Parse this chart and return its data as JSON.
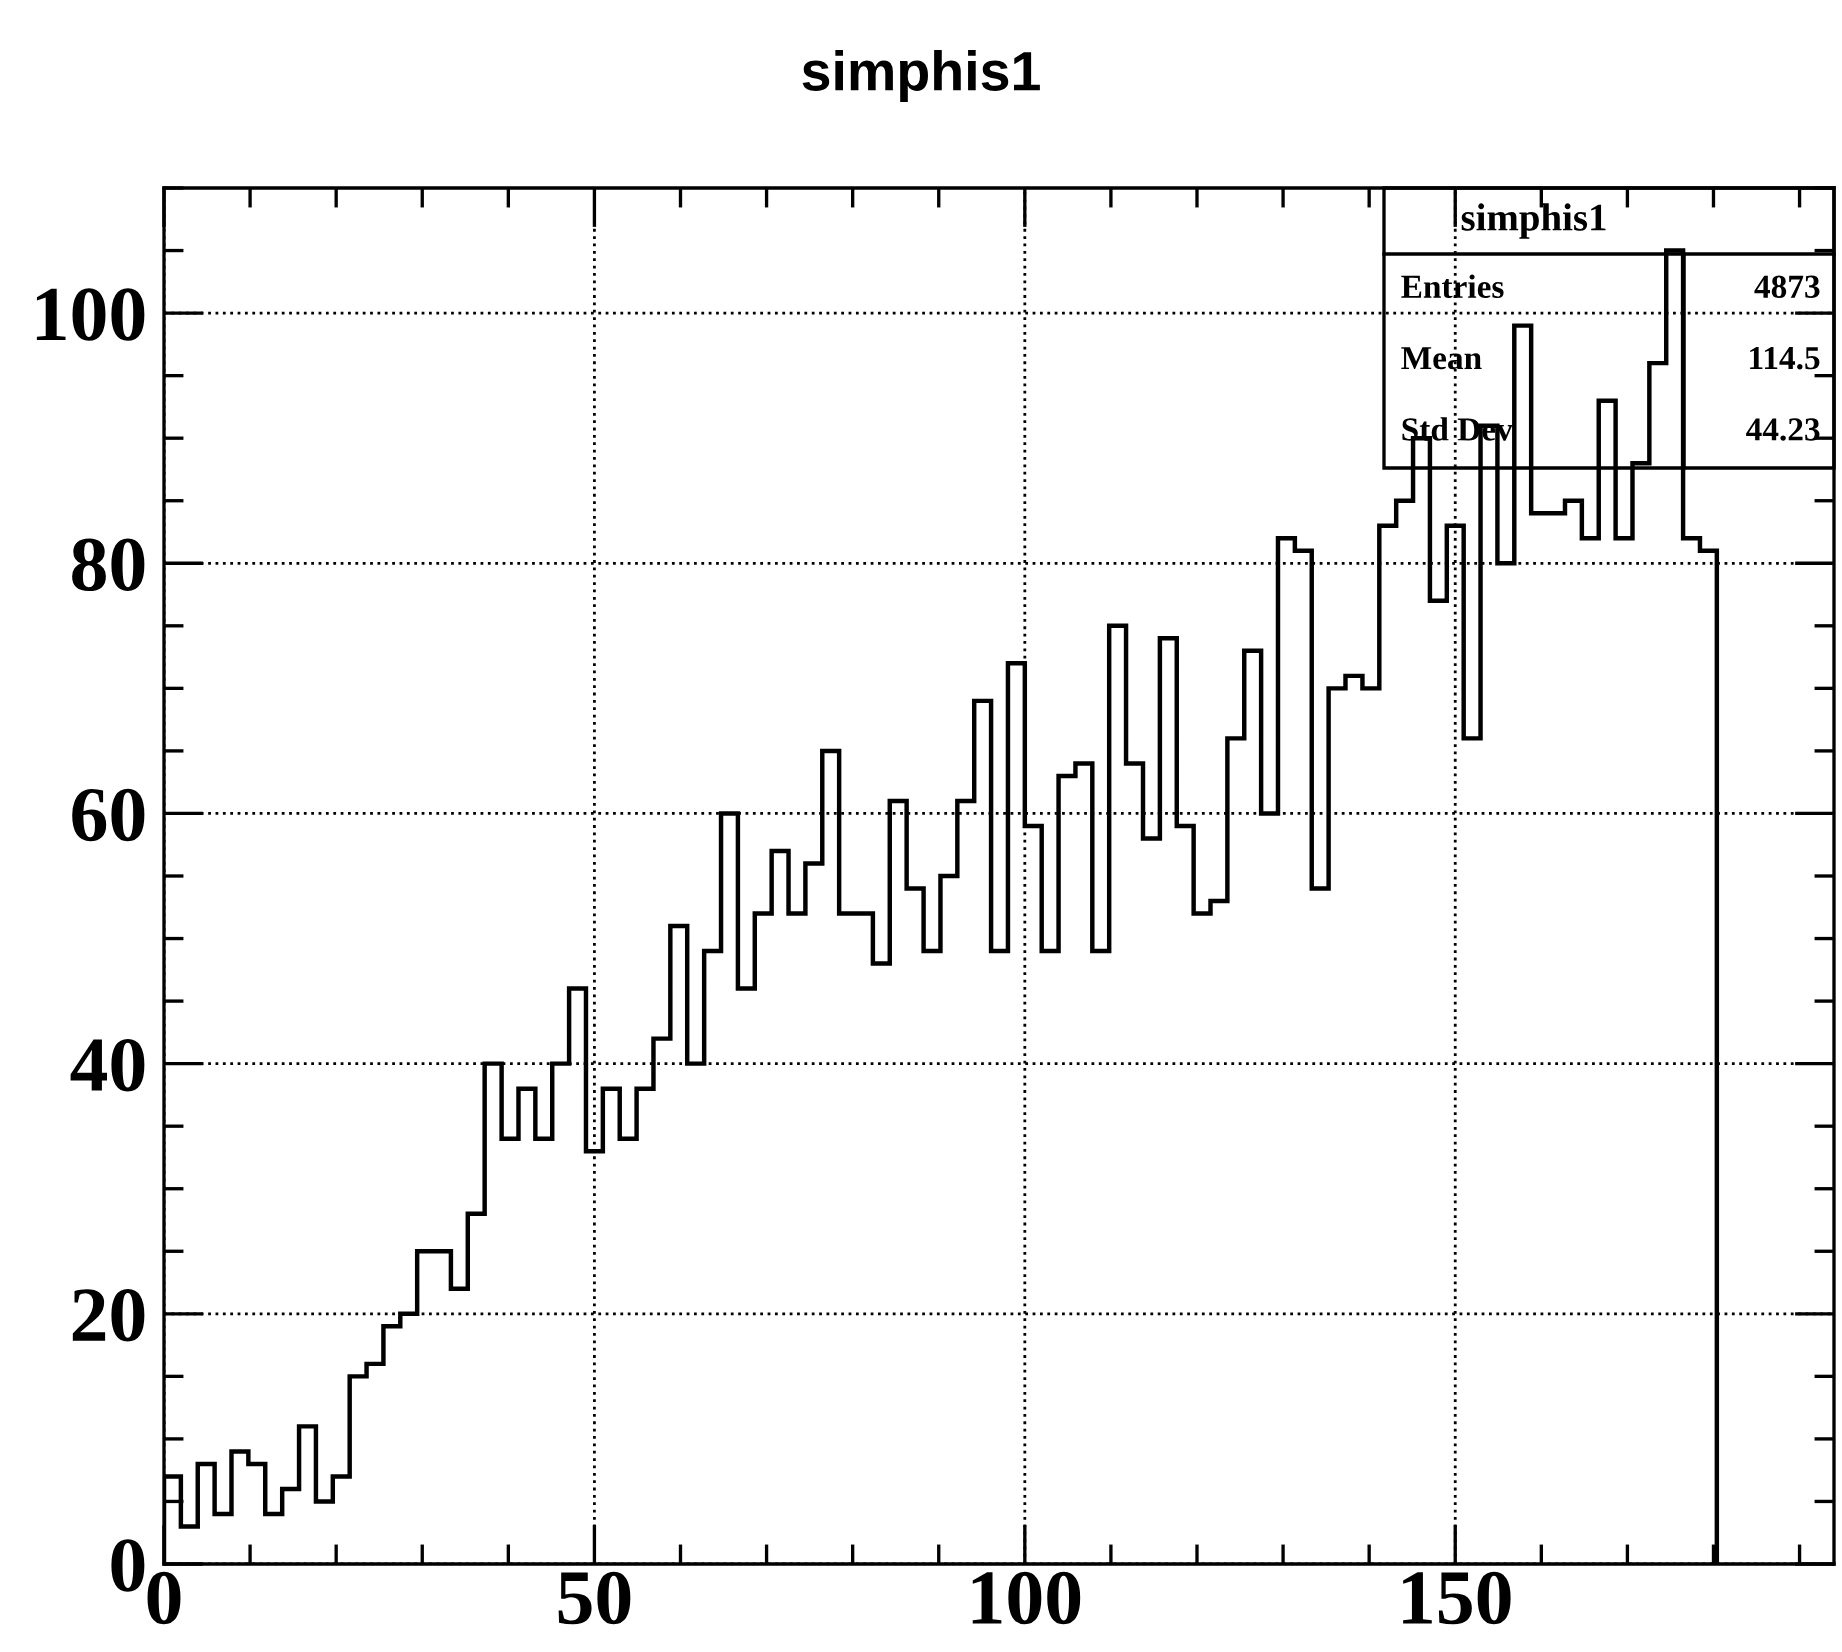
{
  "chart_data": {
    "type": "histogram",
    "title": "simphis1",
    "bins": [
      0,
      1.96,
      3.92,
      5.88,
      7.84,
      9.8,
      11.76,
      13.73,
      15.69,
      17.65,
      19.61,
      21.57,
      23.53,
      25.49,
      27.45,
      29.41,
      31.37,
      33.33,
      35.29,
      37.25,
      39.22,
      41.18,
      43.14,
      45.1,
      47.06,
      49.02,
      50.98,
      52.94,
      54.9,
      56.86,
      58.82,
      60.78,
      62.75,
      64.71,
      66.67,
      68.63,
      70.59,
      72.55,
      74.51,
      76.47,
      78.43,
      80.39,
      82.35,
      84.31,
      86.27,
      88.24,
      90.2,
      92.16,
      94.12,
      96.08,
      98.04,
      100,
      101.96,
      103.92,
      105.88,
      107.84,
      109.8,
      111.76,
      113.73,
      115.69,
      117.65,
      119.61,
      121.57,
      123.53,
      125.49,
      127.45,
      129.41,
      131.37,
      133.33,
      135.29,
      137.25,
      139.22,
      141.18,
      143.14,
      145.1,
      147.06,
      149.02,
      150.98,
      152.94,
      154.9,
      156.86,
      158.82,
      160.78,
      162.75,
      164.71,
      166.67,
      168.63,
      170.59,
      172.55,
      174.51,
      176.47,
      178.43,
      180.39
    ],
    "values": [
      7,
      3,
      8,
      4,
      9,
      8,
      4,
      6,
      11,
      5,
      7,
      15,
      16,
      19,
      20,
      25,
      25,
      22,
      28,
      40,
      34,
      38,
      34,
      40,
      46,
      33,
      38,
      34,
      38,
      42,
      51,
      40,
      49,
      60,
      46,
      52,
      57,
      52,
      56,
      65,
      52,
      52,
      48,
      61,
      54,
      49,
      55,
      61,
      69,
      49,
      72,
      59,
      49,
      63,
      64,
      49,
      75,
      64,
      58,
      74,
      59,
      52,
      53,
      66,
      73,
      60,
      82,
      81,
      54,
      70,
      71,
      70,
      83,
      85,
      90,
      77,
      83,
      66,
      91,
      80,
      99,
      84,
      84,
      85,
      82,
      93,
      82,
      88,
      96,
      105,
      82,
      81
    ],
    "color": "#000000",
    "xlim": [
      0,
      194
    ],
    "xticks": [
      0,
      50,
      100,
      150
    ],
    "ylim": [
      0,
      110
    ],
    "yticks": [
      0,
      20,
      40,
      60,
      80,
      100
    ],
    "grid": true,
    "annotations": [
      "simphis1",
      "Entries",
      "4873",
      "Mean",
      "114.5",
      "Std Dev",
      "44.23"
    ]
  }
}
